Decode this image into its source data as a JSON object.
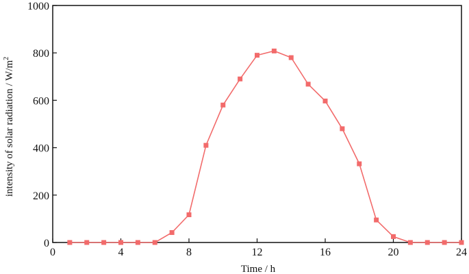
{
  "chart_data": {
    "type": "line",
    "xlabel": "Time / h",
    "ylabel_main": "intensity of solar radiation / W/m",
    "ylabel_sup": "2",
    "xlim": [
      0,
      24
    ],
    "ylim": [
      0,
      1000
    ],
    "x_ticks": [
      0,
      4,
      8,
      12,
      16,
      20,
      24
    ],
    "y_ticks": [
      0,
      200,
      400,
      600,
      800,
      1000
    ],
    "grid": false,
    "legend": false,
    "series_color": "#f26b6b",
    "series": [
      {
        "x": [
          1,
          2,
          3,
          4,
          5,
          6,
          7,
          8,
          9,
          10,
          11,
          12,
          13,
          14,
          15,
          16,
          17,
          18,
          19,
          20,
          21,
          22,
          23,
          24
        ],
        "y": [
          0,
          0,
          0,
          0,
          0,
          0,
          42,
          117,
          410,
          580,
          690,
          790,
          808,
          780,
          668,
          597,
          480,
          332,
          95,
          25,
          0,
          0,
          0,
          0
        ]
      }
    ]
  }
}
